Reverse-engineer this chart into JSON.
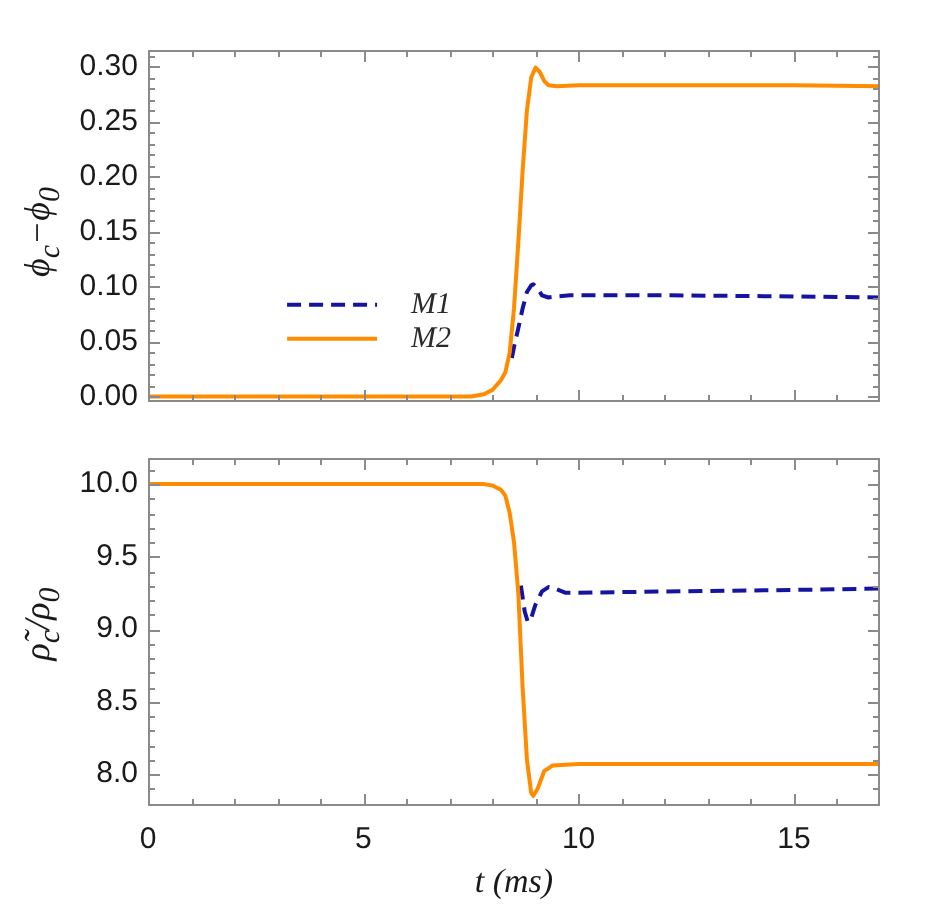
{
  "chart_data": [
    {
      "type": "line",
      "ylabel": "ϕ$_{c}$−ϕ$_{0}$",
      "xlim": [
        0,
        17
      ],
      "xticks": [
        0,
        {
          "value": 1,
          "label": null
        },
        {
          "value": 2,
          "label": null
        },
        {
          "value": 3,
          "label": null
        },
        {
          "value": 4,
          "label": null
        },
        5,
        {
          "value": 6,
          "label": null
        },
        {
          "value": 7,
          "label": null
        },
        {
          "value": 8,
          "label": null
        },
        {
          "value": 9,
          "label": null
        },
        10,
        {
          "value": 11,
          "label": null
        },
        {
          "value": 12,
          "label": null
        },
        {
          "value": 13,
          "label": null
        },
        {
          "value": 14,
          "label": null
        },
        15,
        {
          "value": 16,
          "label": null
        }
      ],
      "ylim": [
        -0.005,
        0.315
      ],
      "yticks": [
        {
          "value": 0,
          "label": "0.00"
        },
        {
          "value": 0.01,
          "label": null
        },
        {
          "value": 0.02,
          "label": null
        },
        {
          "value": 0.03,
          "label": null
        },
        {
          "value": 0.04,
          "label": null
        },
        {
          "value": 0.05,
          "label": "0.05"
        },
        {
          "value": 0.06,
          "label": null
        },
        {
          "value": 0.07,
          "label": null
        },
        {
          "value": 0.08,
          "label": null
        },
        {
          "value": 0.09,
          "label": null
        },
        {
          "value": 0.1,
          "label": "0.10"
        },
        {
          "value": 0.11,
          "label": null
        },
        {
          "value": 0.12,
          "label": null
        },
        {
          "value": 0.13,
          "label": null
        },
        {
          "value": 0.14,
          "label": null
        },
        {
          "value": 0.15,
          "label": "0.15"
        },
        {
          "value": 0.16,
          "label": null
        },
        {
          "value": 0.17,
          "label": null
        },
        {
          "value": 0.18,
          "label": null
        },
        {
          "value": 0.19,
          "label": null
        },
        {
          "value": 0.2,
          "label": "0.20"
        },
        {
          "value": 0.21,
          "label": null
        },
        {
          "value": 0.22,
          "label": null
        },
        {
          "value": 0.23,
          "label": null
        },
        {
          "value": 0.24,
          "label": null
        },
        {
          "value": 0.25,
          "label": "0.25"
        },
        {
          "value": 0.26,
          "label": null
        },
        {
          "value": 0.27,
          "label": null
        },
        {
          "value": 0.28,
          "label": null
        },
        {
          "value": 0.29,
          "label": null
        },
        {
          "value": 0.3,
          "label": "0.30"
        },
        {
          "value": 0.31,
          "label": null
        }
      ],
      "tick_labels": "y",
      "legend": "bottom left",
      "series": [
        {
          "name": "M1",
          "color": "#1414a0",
          "line_style": "dashed",
          "x": [
            8.45,
            8.5,
            8.6,
            8.7,
            8.8,
            8.9,
            8.95,
            9.05,
            9.15,
            9.3,
            9.5,
            9.8,
            12,
            15,
            17
          ],
          "values": [
            0.035,
            0.045,
            0.062,
            0.08,
            0.095,
            0.101,
            0.102,
            0.098,
            0.092,
            0.09,
            0.091,
            0.092,
            0.092,
            0.091,
            0.09
          ]
        },
        {
          "name": "M2",
          "color": "#ff8c00",
          "line_style": "solid",
          "x": [
            0,
            2,
            4,
            6,
            7,
            7.5,
            7.8,
            8,
            8.2,
            8.3,
            8.4,
            8.5,
            8.6,
            8.7,
            8.8,
            8.9,
            9,
            9.1,
            9.2,
            9.3,
            9.5,
            10,
            12,
            15,
            17
          ],
          "values": [
            0,
            0,
            0,
            0,
            0,
            0,
            0.002,
            0.006,
            0.015,
            0.022,
            0.04,
            0.08,
            0.14,
            0.205,
            0.26,
            0.29,
            0.299,
            0.295,
            0.287,
            0.283,
            0.282,
            0.283,
            0.283,
            0.283,
            0.282
          ]
        }
      ]
    },
    {
      "type": "line",
      "xlabel": "t (ms)",
      "ylabel": "ρ̃$_{c}$/ρ$_{0}$",
      "xlim": [
        0,
        17
      ],
      "xticks": [
        0,
        {
          "value": 1,
          "label": null
        },
        {
          "value": 2,
          "label": null
        },
        {
          "value": 3,
          "label": null
        },
        {
          "value": 4,
          "label": null
        },
        5,
        {
          "value": 6,
          "label": null
        },
        {
          "value": 7,
          "label": null
        },
        {
          "value": 8,
          "label": null
        },
        {
          "value": 9,
          "label": null
        },
        10,
        {
          "value": 11,
          "label": null
        },
        {
          "value": 12,
          "label": null
        },
        {
          "value": 13,
          "label": null
        },
        {
          "value": 14,
          "label": null
        },
        15,
        {
          "value": 16,
          "label": null
        }
      ],
      "ylim": [
        7.78,
        10.18
      ],
      "yticks": [
        {
          "value": 7.8,
          "label": null
        },
        {
          "value": 7.9,
          "label": null
        },
        {
          "value": 8,
          "label": "8.0"
        },
        {
          "value": 8.1,
          "label": null
        },
        {
          "value": 8.2,
          "label": null
        },
        {
          "value": 8.3,
          "label": null
        },
        {
          "value": 8.4,
          "label": null
        },
        8.5,
        {
          "value": 8.6,
          "label": null
        },
        {
          "value": 8.7,
          "label": null
        },
        {
          "value": 8.8,
          "label": null
        },
        {
          "value": 8.9,
          "label": null
        },
        {
          "value": 9,
          "label": "9.0"
        },
        {
          "value": 9.1,
          "label": null
        },
        {
          "value": 9.2,
          "label": null
        },
        {
          "value": 9.3,
          "label": null
        },
        {
          "value": 9.4,
          "label": null
        },
        9.5,
        {
          "value": 9.6,
          "label": null
        },
        {
          "value": 9.7,
          "label": null
        },
        {
          "value": 9.8,
          "label": null
        },
        {
          "value": 9.9,
          "label": null
        },
        {
          "value": 10,
          "label": "10.0"
        },
        {
          "value": 10.1,
          "label": null
        }
      ],
      "series": [
        {
          "color": "#1414a0",
          "line_style": "dashed",
          "x": [
            8.66,
            8.75,
            8.82,
            8.88,
            9,
            9.15,
            9.3,
            9.45,
            9.7,
            10,
            12,
            15,
            17
          ],
          "values": [
            9.3,
            9.12,
            9.05,
            9.06,
            9.17,
            9.26,
            9.29,
            9.28,
            9.25,
            9.25,
            9.26,
            9.27,
            9.28
          ]
        },
        {
          "color": "#ff8c00",
          "line_style": "solid",
          "x": [
            0,
            2,
            4,
            6,
            7,
            7.8,
            8,
            8.2,
            8.3,
            8.4,
            8.5,
            8.6,
            8.7,
            8.8,
            8.9,
            8.95,
            9.05,
            9.2,
            9.4,
            10,
            12,
            15,
            17
          ],
          "values": [
            10,
            10,
            10,
            10,
            10,
            10,
            9.99,
            9.96,
            9.92,
            9.8,
            9.6,
            9.25,
            8.6,
            8.1,
            7.87,
            7.85,
            7.9,
            8.02,
            8.06,
            8.07,
            8.07,
            8.07,
            8.07
          ]
        }
      ]
    }
  ]
}
